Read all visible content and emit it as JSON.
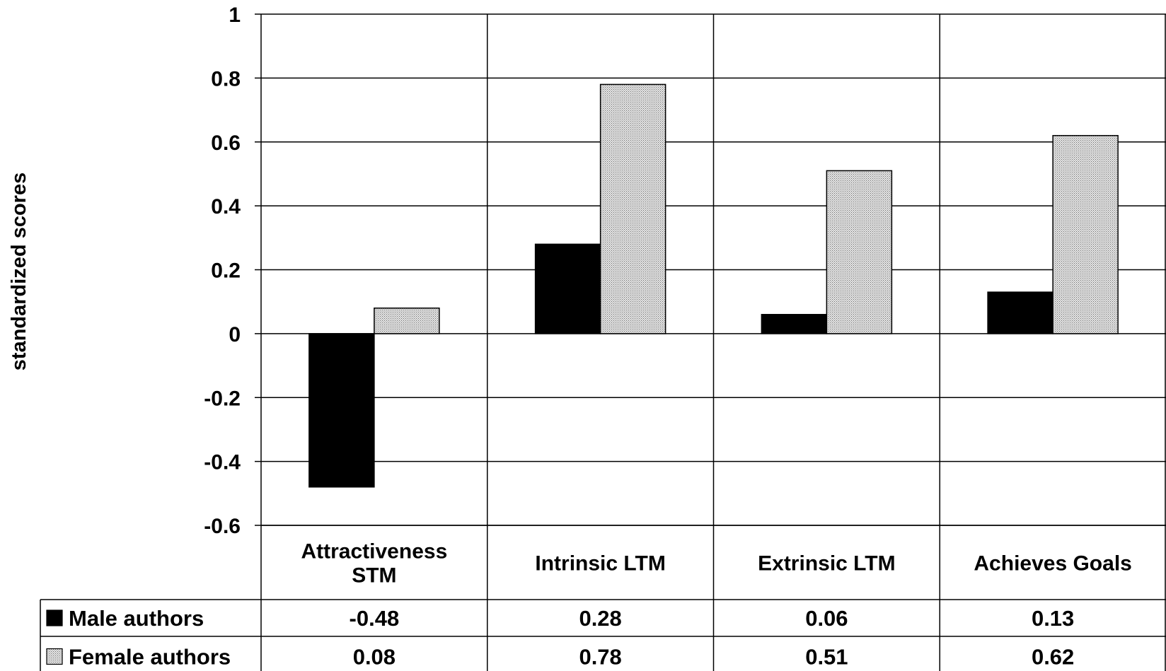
{
  "chart_data": {
    "type": "bar",
    "ylabel": "standardized scores",
    "xlabel": "",
    "ylim": [
      -0.6,
      1
    ],
    "yticks": [
      "1",
      "0.8",
      "0.6",
      "0.4",
      "0.2",
      "0",
      "-0.2",
      "-0.4",
      "-0.6"
    ],
    "grid": true,
    "categories": [
      [
        "Attractiveness",
        "STM"
      ],
      [
        "Intrinsic LTM"
      ],
      [
        "Extrinsic LTM"
      ],
      [
        "Achieves Goals"
      ]
    ],
    "series": [
      {
        "name": "Male authors",
        "fill": "#000000",
        "values": [
          -0.48,
          0.28,
          0.06,
          0.13
        ],
        "labels": [
          "-0.48",
          "0.28",
          "0.06",
          "0.13"
        ]
      },
      {
        "name": "Female authors",
        "fill": "#d9d9d9",
        "pattern": "dotted",
        "values": [
          0.08,
          0.78,
          0.51,
          0.62
        ],
        "labels": [
          "0.08",
          "0.78",
          "0.51",
          "0.62"
        ]
      }
    ],
    "data_table": true,
    "legend_placement": "data-table-rows"
  }
}
